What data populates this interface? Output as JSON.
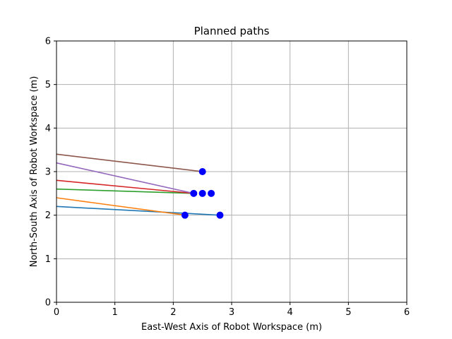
{
  "chart_data": {
    "type": "line",
    "title": "Planned paths",
    "xlabel": "East-West Axis of Robot Workspace (m)",
    "ylabel": "North-South Axis of Robot Workspace (m)",
    "xlim": [
      0,
      6
    ],
    "ylim": [
      0,
      6
    ],
    "xticks": [
      0,
      1,
      2,
      3,
      4,
      5,
      6
    ],
    "yticks": [
      0,
      1,
      2,
      3,
      4,
      5,
      6
    ],
    "grid": true,
    "series": [
      {
        "color": "#1f77b4",
        "points": [
          [
            0,
            2.2
          ],
          [
            2.8,
            2.0
          ]
        ]
      },
      {
        "color": "#ff7f0e",
        "points": [
          [
            0,
            2.4
          ],
          [
            2.2,
            2.0
          ]
        ]
      },
      {
        "color": "#2ca02c",
        "points": [
          [
            0,
            2.6
          ],
          [
            2.35,
            2.5
          ]
        ]
      },
      {
        "color": "#d62728",
        "points": [
          [
            0,
            2.8
          ],
          [
            2.35,
            2.5
          ]
        ]
      },
      {
        "color": "#9467bd",
        "points": [
          [
            0,
            3.2
          ],
          [
            2.35,
            2.5
          ]
        ]
      },
      {
        "color": "#8c564b",
        "points": [
          [
            0,
            3.4
          ],
          [
            2.5,
            3.0
          ]
        ]
      }
    ],
    "markers": {
      "color": "#0000ff",
      "points": [
        [
          2.2,
          2.0
        ],
        [
          2.8,
          2.0
        ],
        [
          2.35,
          2.5
        ],
        [
          2.5,
          2.5
        ],
        [
          2.65,
          2.5
        ],
        [
          2.5,
          3.0
        ]
      ]
    }
  }
}
